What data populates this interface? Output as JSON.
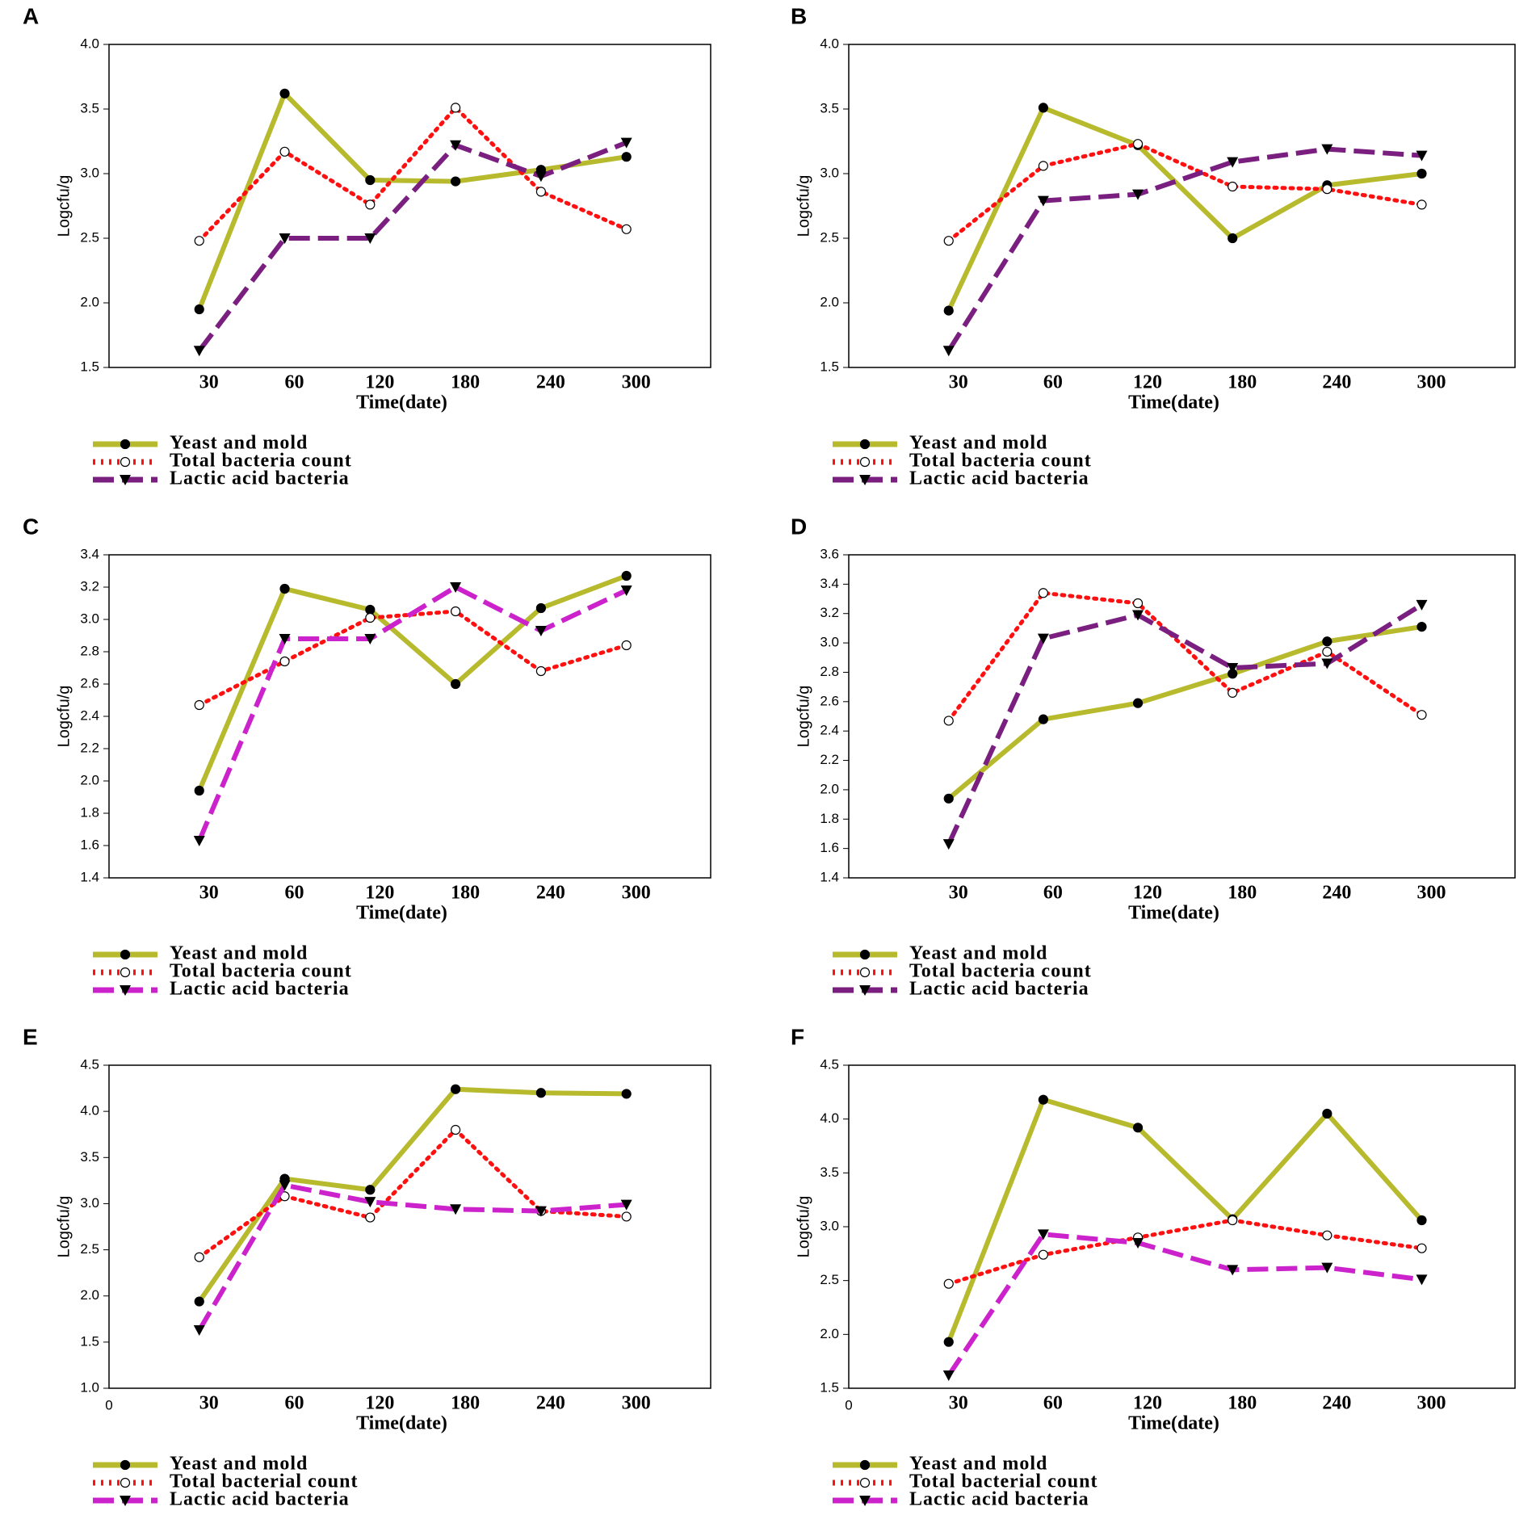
{
  "chart_data": [
    {
      "type": "line",
      "label": "A",
      "ylabel": "Logcfu/g",
      "xlabel": "Time(date)",
      "categories": [
        "30",
        "60",
        "120",
        "180",
        "240",
        "300"
      ],
      "ylim": [
        1.5,
        4.0
      ],
      "yticks": [
        1.5,
        {
          "value": 2,
          "label": "2.0"
        },
        2.5,
        {
          "value": 3,
          "label": "3.0"
        },
        3.5,
        {
          "value": 4,
          "label": "4.0"
        }
      ],
      "series": [
        {
          "name": "Yeast and mold",
          "color": "#b7ba2c",
          "line_style": "solid",
          "marker": "circle",
          "values": [
            1.95,
            3.62,
            2.95,
            2.94,
            3.03,
            3.13
          ]
        },
        {
          "name": "Total bacteria count",
          "color": "#ff1010",
          "line_style": "dotted",
          "marker": "open-circle",
          "values": [
            2.48,
            3.17,
            2.76,
            3.51,
            2.86,
            2.57
          ]
        },
        {
          "name": "Lactic acid bacteria",
          "color": "#7a1f80",
          "line_style": "dashed",
          "marker": "triangle",
          "values": [
            1.63,
            2.5,
            2.5,
            3.22,
            2.98,
            3.24
          ]
        }
      ]
    },
    {
      "type": "line",
      "label": "B",
      "ylabel": "Logcfu/g",
      "xlabel": "Time(date)",
      "categories": [
        "30",
        "60",
        "120",
        "180",
        "240",
        "300"
      ],
      "ylim": [
        1.5,
        4.0
      ],
      "yticks": [
        1.5,
        {
          "value": 2,
          "label": "2.0"
        },
        2.5,
        {
          "value": 3,
          "label": "3.0"
        },
        3.5,
        {
          "value": 4,
          "label": "4.0"
        }
      ],
      "series": [
        {
          "name": "Yeast and mold",
          "color": "#b7ba2c",
          "line_style": "solid",
          "marker": "circle",
          "values": [
            1.94,
            3.51,
            3.22,
            2.5,
            2.91,
            3.0
          ]
        },
        {
          "name": "Total bacteria count",
          "color": "#ff1010",
          "line_style": "dotted",
          "marker": "open-circle",
          "values": [
            2.48,
            3.06,
            3.23,
            2.9,
            2.88,
            2.76
          ]
        },
        {
          "name": "Lactic acid bacteria",
          "color": "#7a1f80",
          "line_style": "dashed",
          "marker": "triangle",
          "values": [
            1.63,
            2.79,
            2.84,
            3.09,
            3.19,
            3.14
          ]
        }
      ]
    },
    {
      "type": "line",
      "label": "C",
      "ylabel": "Logcfu/g",
      "xlabel": "Time(date)",
      "categories": [
        "30",
        "60",
        "120",
        "180",
        "240",
        "300"
      ],
      "ylim": [
        1.4,
        3.4
      ],
      "yticks": [
        1.4,
        1.6,
        1.8,
        {
          "value": 2,
          "label": "2.0"
        },
        2.2,
        2.4,
        2.6,
        2.8,
        {
          "value": 3,
          "label": "3.0"
        },
        3.2,
        3.4
      ],
      "series": [
        {
          "name": "Yeast and mold",
          "color": "#b7ba2c",
          "line_style": "solid",
          "marker": "circle",
          "values": [
            1.94,
            3.19,
            3.06,
            2.6,
            3.07,
            3.27
          ]
        },
        {
          "name": "Total bacteria count",
          "color": "#ff1010",
          "line_style": "dotted",
          "marker": "open-circle",
          "values": [
            2.47,
            2.74,
            3.01,
            3.05,
            2.68,
            2.84
          ]
        },
        {
          "name": "Lactic acid bacteria",
          "color": "#cc22cc",
          "line_style": "dashed",
          "marker": "triangle",
          "values": [
            1.63,
            2.88,
            2.88,
            3.2,
            2.93,
            3.18
          ]
        }
      ]
    },
    {
      "type": "line",
      "label": "D",
      "ylabel": "Logcfu/g",
      "xlabel": "Time(date)",
      "categories": [
        "30",
        "60",
        "120",
        "180",
        "240",
        "300"
      ],
      "ylim": [
        1.4,
        3.6
      ],
      "yticks": [
        1.4,
        1.6,
        1.8,
        {
          "value": 2,
          "label": "2.0"
        },
        2.2,
        2.4,
        2.6,
        2.8,
        {
          "value": 3,
          "label": "3.0"
        },
        3.2,
        3.4,
        3.6
      ],
      "series": [
        {
          "name": "Yeast and mold",
          "color": "#b7ba2c",
          "line_style": "solid",
          "marker": "circle",
          "values": [
            1.94,
            2.48,
            2.59,
            2.79,
            3.01,
            3.11
          ]
        },
        {
          "name": "Total bacteria count",
          "color": "#ff1010",
          "line_style": "dotted",
          "marker": "open-circle",
          "values": [
            2.47,
            3.34,
            3.27,
            2.66,
            2.94,
            2.51
          ]
        },
        {
          "name": "Lactic acid bacteria",
          "color": "#7a1f80",
          "line_style": "dashed",
          "marker": "triangle",
          "values": [
            1.63,
            3.03,
            3.19,
            2.83,
            2.86,
            3.26
          ]
        }
      ]
    },
    {
      "type": "line",
      "label": "E",
      "ylabel": "Logcfu/g",
      "xlabel": "Time(date)",
      "x_origin_label": "0",
      "categories": [
        "30",
        "60",
        "120",
        "180",
        "240",
        "300"
      ],
      "ylim": [
        1.0,
        4.5
      ],
      "yticks": [
        {
          "value": 1,
          "label": "1.0"
        },
        1.5,
        {
          "value": 2,
          "label": "2.0"
        },
        2.5,
        {
          "value": 3,
          "label": "3.0"
        },
        3.5,
        {
          "value": 4,
          "label": "4.0"
        },
        4.5
      ],
      "series": [
        {
          "name": "Yeast and mold",
          "color": "#b7ba2c",
          "line_style": "solid",
          "marker": "circle",
          "values": [
            1.94,
            3.27,
            3.15,
            4.24,
            4.2,
            4.19
          ]
        },
        {
          "name": "Total bacterial count",
          "color": "#ff1010",
          "line_style": "dotted",
          "marker": "open-circle",
          "values": [
            2.42,
            3.08,
            2.85,
            3.8,
            2.92,
            2.86
          ]
        },
        {
          "name": "Lactic acid bacteria",
          "color": "#cc22cc",
          "line_style": "dashed",
          "marker": "triangle",
          "values": [
            1.63,
            3.2,
            3.02,
            2.94,
            2.92,
            2.99
          ]
        }
      ]
    },
    {
      "type": "line",
      "label": "F",
      "ylabel": "Logcfu/g",
      "xlabel": "Time(date)",
      "x_origin_label": "0",
      "categories": [
        "30",
        "60",
        "120",
        "180",
        "240",
        "300"
      ],
      "ylim": [
        1.5,
        4.5
      ],
      "yticks": [
        1.5,
        {
          "value": 2,
          "label": "2.0"
        },
        2.5,
        {
          "value": 3,
          "label": "3.0"
        },
        3.5,
        {
          "value": 4,
          "label": "4.0"
        },
        4.5
      ],
      "series": [
        {
          "name": "Yeast and mold",
          "color": "#b7ba2c",
          "line_style": "solid",
          "marker": "circle",
          "values": [
            1.93,
            4.18,
            3.92,
            3.07,
            4.05,
            3.06
          ]
        },
        {
          "name": "Total bacterial count",
          "color": "#ff1010",
          "line_style": "dotted",
          "marker": "open-circle",
          "values": [
            2.47,
            2.74,
            2.9,
            3.06,
            2.92,
            2.8
          ]
        },
        {
          "name": "Lactic acid bacteria",
          "color": "#cc22cc",
          "line_style": "dashed",
          "marker": "triangle",
          "values": [
            1.62,
            2.93,
            2.85,
            2.6,
            2.62,
            2.51
          ]
        }
      ]
    }
  ]
}
